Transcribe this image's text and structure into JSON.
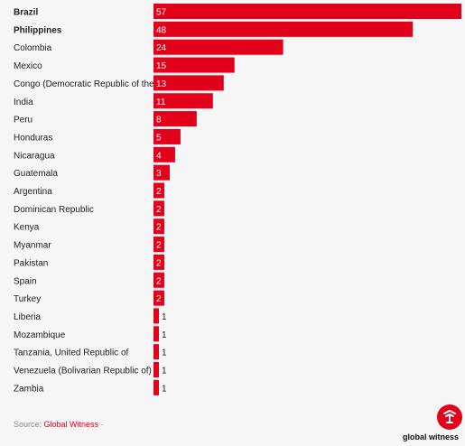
{
  "chart_data": {
    "type": "bar",
    "orientation": "horizontal",
    "title": "",
    "xlabel": "",
    "ylabel": "",
    "xlim": [
      0,
      57
    ],
    "grid": false,
    "bar_color": "#e3001b",
    "categories": [
      "Brazil",
      "Philippines",
      "Colombia",
      "Mexico",
      "Congo (Democratic Republic of the)",
      "India",
      "Peru",
      "Honduras",
      "Nicaragua",
      "Guatemala",
      "Argentina",
      "Dominican Republic",
      "Kenya",
      "Myanmar",
      "Pakistan",
      "Spain",
      "Turkey",
      "Liberia",
      "Mozambique",
      "Tanzania, United Republic of",
      "Venezuela (Bolivarian Republic of)",
      "Zambia"
    ],
    "bold_categories": [
      "Brazil",
      "Philippines"
    ],
    "values": [
      57,
      48,
      24,
      15,
      13,
      11,
      8,
      5,
      4,
      3,
      2,
      2,
      2,
      2,
      2,
      2,
      2,
      1,
      1,
      1,
      1,
      1
    ]
  },
  "footer": {
    "source_prefix": "Source: ",
    "source_name": "Global Witness",
    "source_suffix": " ·"
  },
  "logo": {
    "text": "global witness",
    "color": "#e3001b"
  }
}
